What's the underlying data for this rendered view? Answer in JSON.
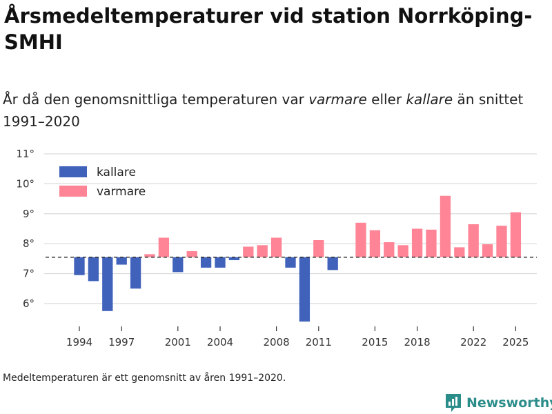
{
  "title": "Årsmedeltemperaturer vid station Norrköping-SMHI",
  "subtitle": {
    "prefix": "År då den genomsnittliga temperaturen var ",
    "warmer": "varmare",
    "middle": " eller ",
    "colder": "kallare",
    "suffix": " än snittet 1991–2020"
  },
  "footnote": "Medeltemperaturen är ett genomsnitt av åren 1991–2020.",
  "brand": "Newsworthy",
  "colors": {
    "kallare": "#4062bb",
    "varmare": "#fe8496",
    "grid": "#d9d9d9",
    "baseline": "#333333",
    "brand": "#2b8d8a"
  },
  "chart_data": {
    "type": "bar",
    "title": "Årsmedeltemperaturer vid station Norrköping-SMHI",
    "xlabel": "",
    "ylabel": "",
    "baseline": 7.55,
    "ylim": [
      5.4,
      11
    ],
    "yticks": [
      6,
      7,
      8,
      9,
      10,
      11
    ],
    "ytick_suffix": "°",
    "xlim": [
      1991.5,
      2026.5
    ],
    "xticks": [
      1994,
      1997,
      2001,
      2004,
      2008,
      2011,
      2015,
      2018,
      2022,
      2025
    ],
    "legend": [
      {
        "key": "kallare",
        "label": "kallare"
      },
      {
        "key": "varmare",
        "label": "varmare"
      }
    ],
    "legend_position": "top-left",
    "years": [
      1994,
      1995,
      1996,
      1997,
      1998,
      1999,
      2000,
      2001,
      2002,
      2003,
      2004,
      2005,
      2006,
      2007,
      2008,
      2009,
      2010,
      2011,
      2012,
      2014,
      2015,
      2016,
      2017,
      2018,
      2019,
      2020,
      2021,
      2022,
      2023,
      2024,
      2025
    ],
    "values": [
      6.95,
      6.75,
      5.75,
      7.3,
      6.5,
      7.65,
      8.2,
      7.05,
      7.75,
      7.2,
      7.2,
      7.45,
      7.9,
      7.95,
      8.2,
      7.2,
      5.4,
      8.12,
      7.12,
      8.7,
      8.45,
      8.05,
      7.95,
      8.5,
      8.47,
      9.6,
      7.88,
      8.65,
      7.98,
      8.6,
      9.05
    ]
  }
}
